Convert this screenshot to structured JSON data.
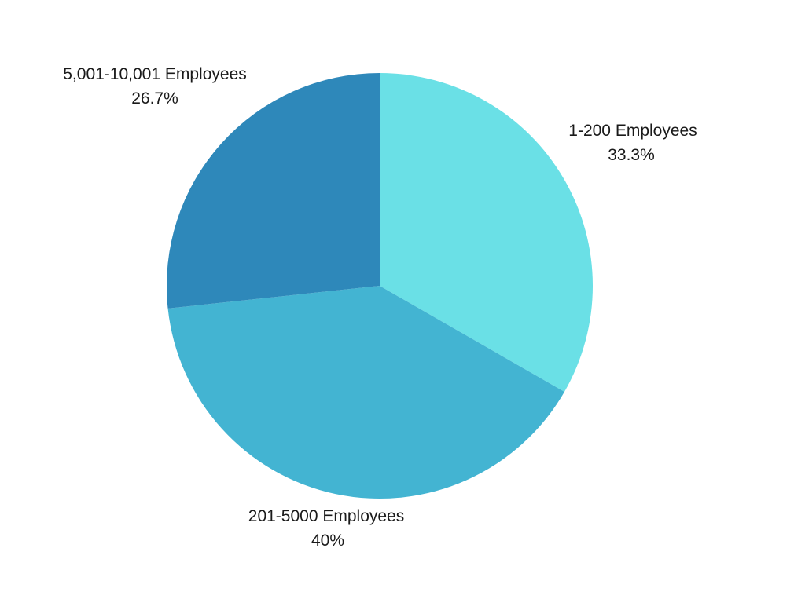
{
  "chart_data": {
    "type": "pie",
    "title": "",
    "slices": [
      {
        "label": "1-200 Employees",
        "value": 33.3,
        "value_label": "33.3%",
        "color": "#6ae0e6"
      },
      {
        "label": "201-5000 Employees",
        "value": 40,
        "value_label": "40%",
        "color": "#43b4d2"
      },
      {
        "label": "5,001-10,001 Employees",
        "value": 26.7,
        "value_label": "26.7%",
        "color": "#2e88ba"
      }
    ],
    "start_angle": "12 o'clock",
    "direction": "clockwise",
    "legend": "none",
    "labels_outside": true
  }
}
